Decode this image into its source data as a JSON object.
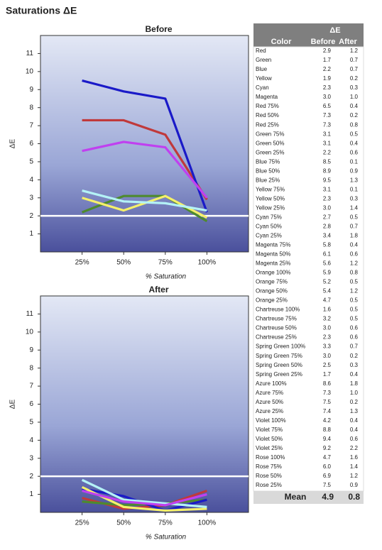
{
  "title": "Saturations ΔE",
  "chart_data": [
    {
      "type": "line",
      "title": "Before",
      "x_label": "% Saturation",
      "y_label": "ΔE",
      "categories": [
        "25%",
        "50%",
        "75%",
        "100%"
      ],
      "ylim": [
        0,
        12
      ],
      "yticks": [
        1,
        2,
        3,
        4,
        5,
        6,
        7,
        8,
        9,
        10,
        11
      ],
      "reference_line": 2,
      "series": [
        {
          "name": "Red",
          "color": "#c0393b",
          "values": [
            7.3,
            7.3,
            6.5,
            2.9
          ]
        },
        {
          "name": "Green",
          "color": "#4e8a2e",
          "values": [
            2.2,
            3.1,
            3.1,
            1.7
          ]
        },
        {
          "name": "Blue",
          "color": "#1a1ac8",
          "values": [
            9.5,
            8.9,
            8.5,
            2.2
          ]
        },
        {
          "name": "Yellow",
          "color": "#f5f06a",
          "values": [
            3.0,
            2.3,
            3.1,
            1.9
          ]
        },
        {
          "name": "Cyan",
          "color": "#b4f2f6",
          "values": [
            3.4,
            2.8,
            2.7,
            2.3
          ]
        },
        {
          "name": "Magenta",
          "color": "#c040f0",
          "values": [
            5.6,
            6.1,
            5.8,
            3.0
          ]
        }
      ]
    },
    {
      "type": "line",
      "title": "After",
      "x_label": "% Saturation",
      "y_label": "ΔE",
      "categories": [
        "25%",
        "50%",
        "75%",
        "100%"
      ],
      "ylim": [
        0,
        12
      ],
      "yticks": [
        1,
        2,
        3,
        4,
        5,
        6,
        7,
        8,
        9,
        10,
        11
      ],
      "reference_line": 2,
      "series": [
        {
          "name": "Red",
          "color": "#c0393b",
          "values": [
            0.8,
            0.2,
            0.4,
            1.2
          ]
        },
        {
          "name": "Green",
          "color": "#4e8a2e",
          "values": [
            0.6,
            0.4,
            0.5,
            0.7
          ]
        },
        {
          "name": "Blue",
          "color": "#1a1ac8",
          "values": [
            1.3,
            0.9,
            0.1,
            0.7
          ]
        },
        {
          "name": "Yellow",
          "color": "#f5f06a",
          "values": [
            1.4,
            0.3,
            0.1,
            0.2
          ]
        },
        {
          "name": "Cyan",
          "color": "#b4f2f6",
          "values": [
            1.8,
            0.7,
            0.5,
            0.3
          ]
        },
        {
          "name": "Magenta",
          "color": "#c040f0",
          "values": [
            1.2,
            0.6,
            0.4,
            1.0
          ]
        }
      ]
    }
  ],
  "table": {
    "group": "ΔE",
    "columns": [
      "Color",
      "Before",
      "After"
    ],
    "rows": [
      [
        "Red",
        "2.9",
        "1.2"
      ],
      [
        "Green",
        "1.7",
        "0.7"
      ],
      [
        "Blue",
        "2.2",
        "0.7"
      ],
      [
        "Yellow",
        "1.9",
        "0.2"
      ],
      [
        "Cyan",
        "2.3",
        "0.3"
      ],
      [
        "Magenta",
        "3.0",
        "1.0"
      ],
      [
        "Red 75%",
        "6.5",
        "0.4"
      ],
      [
        "Red 50%",
        "7.3",
        "0.2"
      ],
      [
        "Red 25%",
        "7.3",
        "0.8"
      ],
      [
        "Green 75%",
        "3.1",
        "0.5"
      ],
      [
        "Green 50%",
        "3.1",
        "0.4"
      ],
      [
        "Green 25%",
        "2.2",
        "0.6"
      ],
      [
        "Blue 75%",
        "8.5",
        "0.1"
      ],
      [
        "Blue 50%",
        "8.9",
        "0.9"
      ],
      [
        "Blue 25%",
        "9.5",
        "1.3"
      ],
      [
        "Yellow 75%",
        "3.1",
        "0.1"
      ],
      [
        "Yellow 50%",
        "2.3",
        "0.3"
      ],
      [
        "Yellow 25%",
        "3.0",
        "1.4"
      ],
      [
        "Cyan 75%",
        "2.7",
        "0.5"
      ],
      [
        "Cyan 50%",
        "2.8",
        "0.7"
      ],
      [
        "Cyan 25%",
        "3.4",
        "1.8"
      ],
      [
        "Magenta 75%",
        "5.8",
        "0.4"
      ],
      [
        "Magenta 50%",
        "6.1",
        "0.6"
      ],
      [
        "Magenta 25%",
        "5.6",
        "1.2"
      ],
      [
        "Orange 100%",
        "5.9",
        "0.8"
      ],
      [
        "Orange 75%",
        "5.2",
        "0.5"
      ],
      [
        "Orange 50%",
        "5.4",
        "1.2"
      ],
      [
        "Orange 25%",
        "4.7",
        "0.5"
      ],
      [
        "Chartreuse 100%",
        "1.6",
        "0.5"
      ],
      [
        "Chartreuse 75%",
        "3.2",
        "0.5"
      ],
      [
        "Chartreuse 50%",
        "3.0",
        "0.6"
      ],
      [
        "Chartreuse 25%",
        "2.3",
        "0.6"
      ],
      [
        "Spring Green 100%",
        "3.3",
        "0.7"
      ],
      [
        "Spring Green 75%",
        "3.0",
        "0.2"
      ],
      [
        "Spring Green 50%",
        "2.5",
        "0.3"
      ],
      [
        "Spring Green 25%",
        "1.7",
        "0.4"
      ],
      [
        "Azure 100%",
        "8.6",
        "1.8"
      ],
      [
        "Azure 75%",
        "7.3",
        "1.0"
      ],
      [
        "Azure 50%",
        "7.5",
        "0.2"
      ],
      [
        "Azure 25%",
        "7.4",
        "1.3"
      ],
      [
        "Violet 100%",
        "4.2",
        "0.4"
      ],
      [
        "Violet 75%",
        "8.8",
        "0.4"
      ],
      [
        "Violet 50%",
        "9.4",
        "0.6"
      ],
      [
        "Violet 25%",
        "9.2",
        "2.2"
      ],
      [
        "Rose 100%",
        "4.7",
        "1.6"
      ],
      [
        "Rose 75%",
        "6.0",
        "1.4"
      ],
      [
        "Rose 50%",
        "6.9",
        "1.2"
      ],
      [
        "Rose 25%",
        "7.5",
        "0.9"
      ]
    ],
    "mean": [
      "Mean",
      "4.9",
      "0.8"
    ]
  }
}
